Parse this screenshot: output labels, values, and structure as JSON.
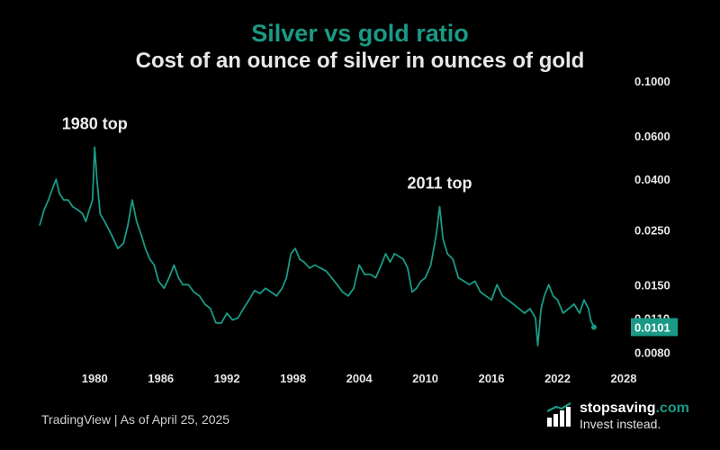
{
  "chart_data": {
    "type": "line",
    "title": "Silver vs gold ratio",
    "subtitle": "Cost of an ounce of silver in ounces of gold",
    "xlabel": "",
    "ylabel": "",
    "y_scale": "log",
    "ylim": [
      0.0075,
      0.105
    ],
    "xlim": [
      1975.0,
      2028.0
    ],
    "x_ticks": [
      "1980",
      "1986",
      "1992",
      "1998",
      "2004",
      "2010",
      "2016",
      "2022",
      "2028"
    ],
    "y_ticks": [
      "0.1000",
      "0.0600",
      "0.0400",
      "0.0250",
      "0.0150",
      "0.0110",
      "0.0080"
    ],
    "last_value_label": "0.0101",
    "annotations": [
      {
        "text": "1980 top",
        "x": 1980.0,
        "y": 0.054
      },
      {
        "text": "2011 top",
        "x": 2011.3,
        "y": 0.031
      }
    ],
    "series": [
      {
        "color": "#1a9a86",
        "points": [
          [
            1975.0,
            0.026
          ],
          [
            1975.4,
            0.03
          ],
          [
            1975.8,
            0.033
          ],
          [
            1976.2,
            0.037
          ],
          [
            1976.5,
            0.04
          ],
          [
            1976.8,
            0.035
          ],
          [
            1977.2,
            0.033
          ],
          [
            1977.6,
            0.033
          ],
          [
            1978.0,
            0.031
          ],
          [
            1978.5,
            0.03
          ],
          [
            1978.9,
            0.029
          ],
          [
            1979.2,
            0.027
          ],
          [
            1979.5,
            0.03
          ],
          [
            1979.8,
            0.033
          ],
          [
            1980.0,
            0.054
          ],
          [
            1980.2,
            0.04
          ],
          [
            1980.5,
            0.029
          ],
          [
            1980.9,
            0.027
          ],
          [
            1981.3,
            0.025
          ],
          [
            1981.7,
            0.023
          ],
          [
            1982.1,
            0.021
          ],
          [
            1982.6,
            0.022
          ],
          [
            1983.0,
            0.026
          ],
          [
            1983.4,
            0.033
          ],
          [
            1983.8,
            0.027
          ],
          [
            1984.2,
            0.024
          ],
          [
            1984.6,
            0.021
          ],
          [
            1985.0,
            0.019
          ],
          [
            1985.4,
            0.018
          ],
          [
            1985.8,
            0.0155
          ],
          [
            1986.3,
            0.0145
          ],
          [
            1986.8,
            0.0162
          ],
          [
            1987.2,
            0.018
          ],
          [
            1987.6,
            0.016
          ],
          [
            1988.0,
            0.015
          ],
          [
            1988.5,
            0.015
          ],
          [
            1989.0,
            0.014
          ],
          [
            1989.5,
            0.0135
          ],
          [
            1990.0,
            0.0125
          ],
          [
            1990.5,
            0.012
          ],
          [
            1991.0,
            0.0105
          ],
          [
            1991.5,
            0.0105
          ],
          [
            1992.0,
            0.0115
          ],
          [
            1992.5,
            0.0108
          ],
          [
            1993.0,
            0.011
          ],
          [
            1993.5,
            0.012
          ],
          [
            1994.0,
            0.013
          ],
          [
            1994.5,
            0.0142
          ],
          [
            1995.0,
            0.0138
          ],
          [
            1995.5,
            0.0145
          ],
          [
            1996.0,
            0.014
          ],
          [
            1996.5,
            0.0135
          ],
          [
            1997.0,
            0.0145
          ],
          [
            1997.4,
            0.016
          ],
          [
            1997.8,
            0.02
          ],
          [
            1998.2,
            0.021
          ],
          [
            1998.6,
            0.019
          ],
          [
            1999.0,
            0.0185
          ],
          [
            1999.5,
            0.0175
          ],
          [
            2000.0,
            0.018
          ],
          [
            2000.5,
            0.0175
          ],
          [
            2001.0,
            0.017
          ],
          [
            2001.5,
            0.016
          ],
          [
            2002.0,
            0.015
          ],
          [
            2002.5,
            0.014
          ],
          [
            2003.0,
            0.0135
          ],
          [
            2003.5,
            0.0145
          ],
          [
            2004.0,
            0.018
          ],
          [
            2004.5,
            0.0165
          ],
          [
            2005.0,
            0.0165
          ],
          [
            2005.5,
            0.016
          ],
          [
            2006.0,
            0.018
          ],
          [
            2006.4,
            0.02
          ],
          [
            2006.8,
            0.0185
          ],
          [
            2007.2,
            0.02
          ],
          [
            2007.6,
            0.0195
          ],
          [
            2008.0,
            0.019
          ],
          [
            2008.4,
            0.0175
          ],
          [
            2008.8,
            0.014
          ],
          [
            2009.2,
            0.0145
          ],
          [
            2009.6,
            0.0155
          ],
          [
            2010.0,
            0.016
          ],
          [
            2010.5,
            0.018
          ],
          [
            2011.0,
            0.024
          ],
          [
            2011.3,
            0.031
          ],
          [
            2011.6,
            0.023
          ],
          [
            2012.0,
            0.02
          ],
          [
            2012.5,
            0.019
          ],
          [
            2013.0,
            0.016
          ],
          [
            2013.5,
            0.0155
          ],
          [
            2014.0,
            0.015
          ],
          [
            2014.5,
            0.0155
          ],
          [
            2015.0,
            0.014
          ],
          [
            2015.5,
            0.0135
          ],
          [
            2016.0,
            0.013
          ],
          [
            2016.5,
            0.015
          ],
          [
            2017.0,
            0.0135
          ],
          [
            2017.5,
            0.013
          ],
          [
            2018.0,
            0.0125
          ],
          [
            2018.5,
            0.012
          ],
          [
            2019.0,
            0.0115
          ],
          [
            2019.5,
            0.012
          ],
          [
            2020.0,
            0.011
          ],
          [
            2020.2,
            0.0085
          ],
          [
            2020.5,
            0.012
          ],
          [
            2020.8,
            0.0135
          ],
          [
            2021.2,
            0.015
          ],
          [
            2021.6,
            0.0135
          ],
          [
            2022.0,
            0.013
          ],
          [
            2022.5,
            0.0115
          ],
          [
            2023.0,
            0.012
          ],
          [
            2023.5,
            0.0125
          ],
          [
            2024.0,
            0.0115
          ],
          [
            2024.4,
            0.013
          ],
          [
            2024.8,
            0.012
          ],
          [
            2025.0,
            0.0108
          ],
          [
            2025.3,
            0.0101
          ]
        ]
      }
    ]
  },
  "footer": {
    "source": "TradingView | As of April 25, 2025"
  },
  "brand": {
    "name_part1": "stopsaving",
    "name_part2": ".com",
    "tagline": "Invest instead.",
    "icon": "bar-chart-icon"
  },
  "colors": {
    "accent": "#1a9a86",
    "background": "#000000"
  }
}
